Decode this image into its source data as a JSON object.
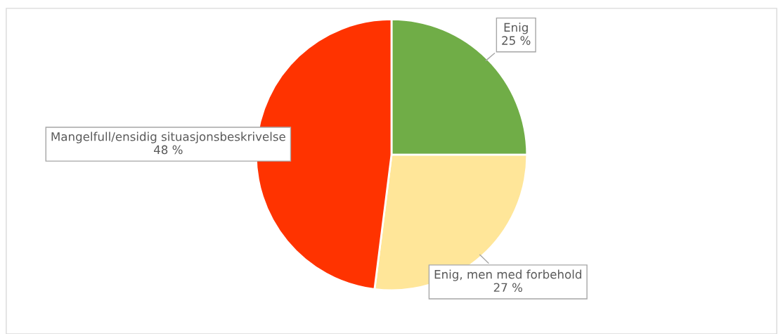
{
  "chart_data": {
    "type": "pie",
    "categories": [
      "Enig",
      "Enig, men med forbehold",
      "Mangelfull/ensidig situasjonsbeskrivelse"
    ],
    "values": [
      25,
      27,
      48
    ],
    "colors": [
      "#70ad47",
      "#ffe699",
      "#ff3300"
    ],
    "value_labels": [
      "25 %",
      "27 %",
      "48 %"
    ],
    "legend": false
  }
}
